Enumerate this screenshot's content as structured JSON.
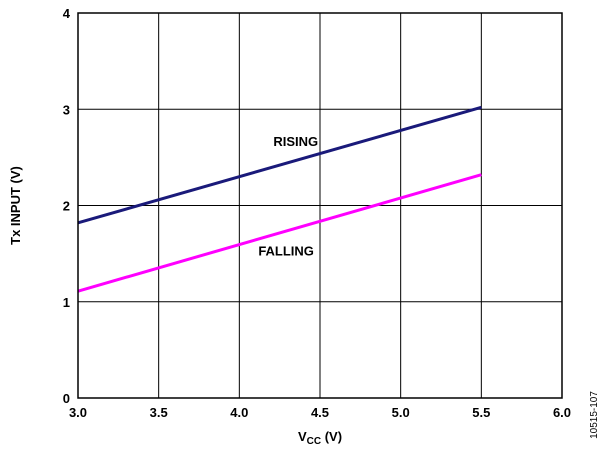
{
  "chart_data": {
    "type": "line",
    "xlabel_main": "V",
    "xlabel_sub": "CC",
    "xlabel_unit": " (V)",
    "ylabel": "Tx INPUT (V)",
    "xlim": [
      3.0,
      6.0
    ],
    "ylim": [
      0,
      4
    ],
    "x_ticks": [
      3.0,
      3.5,
      4.0,
      4.5,
      5.0,
      5.5,
      6.0
    ],
    "x_tick_labels": [
      "3.0",
      "3.5",
      "4.0",
      "4.5",
      "5.0",
      "5.5",
      "6.0"
    ],
    "y_ticks": [
      0,
      1,
      2,
      3,
      4
    ],
    "y_tick_labels": [
      "0",
      "1",
      "2",
      "3",
      "4"
    ],
    "grid": true,
    "series": [
      {
        "name": "RISING",
        "color": "#1a1a7a",
        "x": [
          3.0,
          5.5
        ],
        "y": [
          1.82,
          3.02
        ]
      },
      {
        "name": "FALLING",
        "color": "#ff00ff",
        "x": [
          3.0,
          5.5
        ],
        "y": [
          1.11,
          2.32
        ]
      }
    ],
    "annotations": [
      {
        "text": "RISING",
        "x": 4.35,
        "y": 2.62
      },
      {
        "text": "FALLING",
        "x": 4.29,
        "y": 1.48
      }
    ],
    "figure_id": "10515-107"
  }
}
